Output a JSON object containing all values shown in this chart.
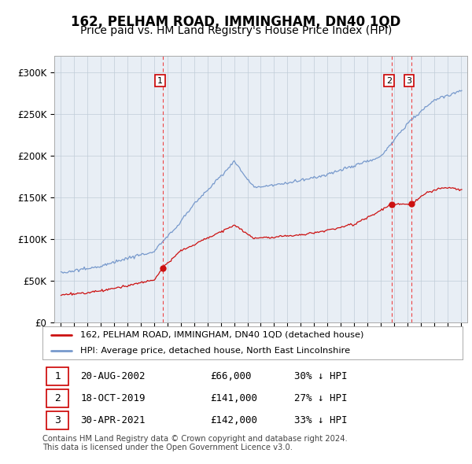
{
  "title": "162, PELHAM ROAD, IMMINGHAM, DN40 1QD",
  "subtitle": "Price paid vs. HM Land Registry's House Price Index (HPI)",
  "property_label": "162, PELHAM ROAD, IMMINGHAM, DN40 1QD (detached house)",
  "hpi_label": "HPI: Average price, detached house, North East Lincolnshire",
  "footnote": "Contains HM Land Registry data © Crown copyright and database right 2024.\nThis data is licensed under the Open Government Licence v3.0.",
  "transactions": [
    {
      "num": 1,
      "date": "20-AUG-2002",
      "price": "£66,000",
      "hpi_diff": "30% ↓ HPI",
      "year": 2002.63
    },
    {
      "num": 2,
      "date": "18-OCT-2019",
      "price": "£141,000",
      "hpi_diff": "27% ↓ HPI",
      "year": 2019.83
    },
    {
      "num": 3,
      "date": "30-APR-2021",
      "price": "£142,000",
      "hpi_diff": "33% ↓ HPI",
      "year": 2021.33
    }
  ],
  "ylim": [
    0,
    320000
  ],
  "yticks": [
    0,
    50000,
    100000,
    150000,
    200000,
    250000,
    300000
  ],
  "ytick_labels": [
    "£0",
    "£50K",
    "£100K",
    "£150K",
    "£200K",
    "£250K",
    "£300K"
  ],
  "xmin": 1994.5,
  "xmax": 2025.5,
  "background_color": "#ffffff",
  "chart_bg_color": "#e8eef5",
  "grid_color": "#c0ccd8",
  "line_color_property": "#cc1111",
  "line_color_hpi": "#7799cc",
  "vline_color": "#ee4444",
  "transaction_box_color": "#cc0000",
  "title_fontsize": 12,
  "subtitle_fontsize": 10
}
